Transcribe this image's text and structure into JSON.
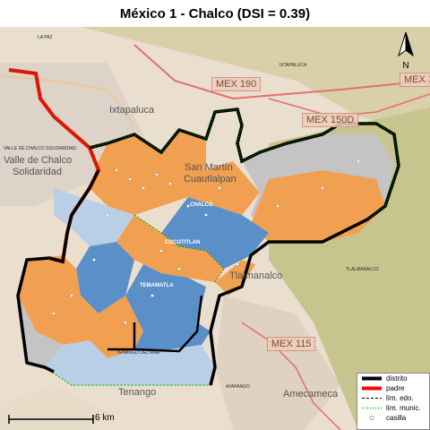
{
  "title": "México 1 - Chalco (DSI = 0.39)",
  "roads": [
    {
      "label": "MEX 190"
    },
    {
      "label": "MEX 150D"
    },
    {
      "label": "MEX 1"
    },
    {
      "label": "MEX 115"
    }
  ],
  "places_big": [
    {
      "label": "Ixtapaluca"
    },
    {
      "label": "Valle de Chalco"
    },
    {
      "label": "Solidaridad"
    },
    {
      "label": "San Martín"
    },
    {
      "label": "Cuautlalpan"
    },
    {
      "label": "Tlalmanalco"
    },
    {
      "label": "Amecameca"
    },
    {
      "label": "Tenango"
    }
  ],
  "places_small": [
    {
      "label": "LA PAZ"
    },
    {
      "label": "IXTAPALUCA"
    },
    {
      "label": "VALLE DE CHALCO SOLIDARIDAD"
    },
    {
      "label": "TLALMANALCO"
    },
    {
      "label": "AYAPANGO"
    },
    {
      "label": "TENANGO DEL AIRE"
    }
  ],
  "places_white": [
    {
      "label": "CHALCO"
    },
    {
      "label": "COCOTITLAN"
    },
    {
      "label": "TEMAMATLA"
    }
  ],
  "north": {
    "label": "N"
  },
  "scale": {
    "label": "6 km"
  },
  "legend": [
    {
      "label": "distrito",
      "color": "#000000",
      "icon": "thick-black-line"
    },
    {
      "label": "padre",
      "color": "#ff0000",
      "icon": "thick-red-line"
    },
    {
      "label": "lím. edo.",
      "color": "#000000",
      "icon": "dashed-line"
    },
    {
      "label": "lím. munic.",
      "color": "#00a000",
      "icon": "green-dotted-line"
    },
    {
      "label": "casilla",
      "color": "#bbbbbb",
      "icon": "circle-marker"
    }
  ],
  "colors": {
    "orange": "#f0a050",
    "blue": "#5a8fc8",
    "light_blue": "#b8cfe6",
    "grey": "#c4c4c4",
    "district": "#000000",
    "parent": "#ff0000",
    "municipal": "#00a000"
  }
}
